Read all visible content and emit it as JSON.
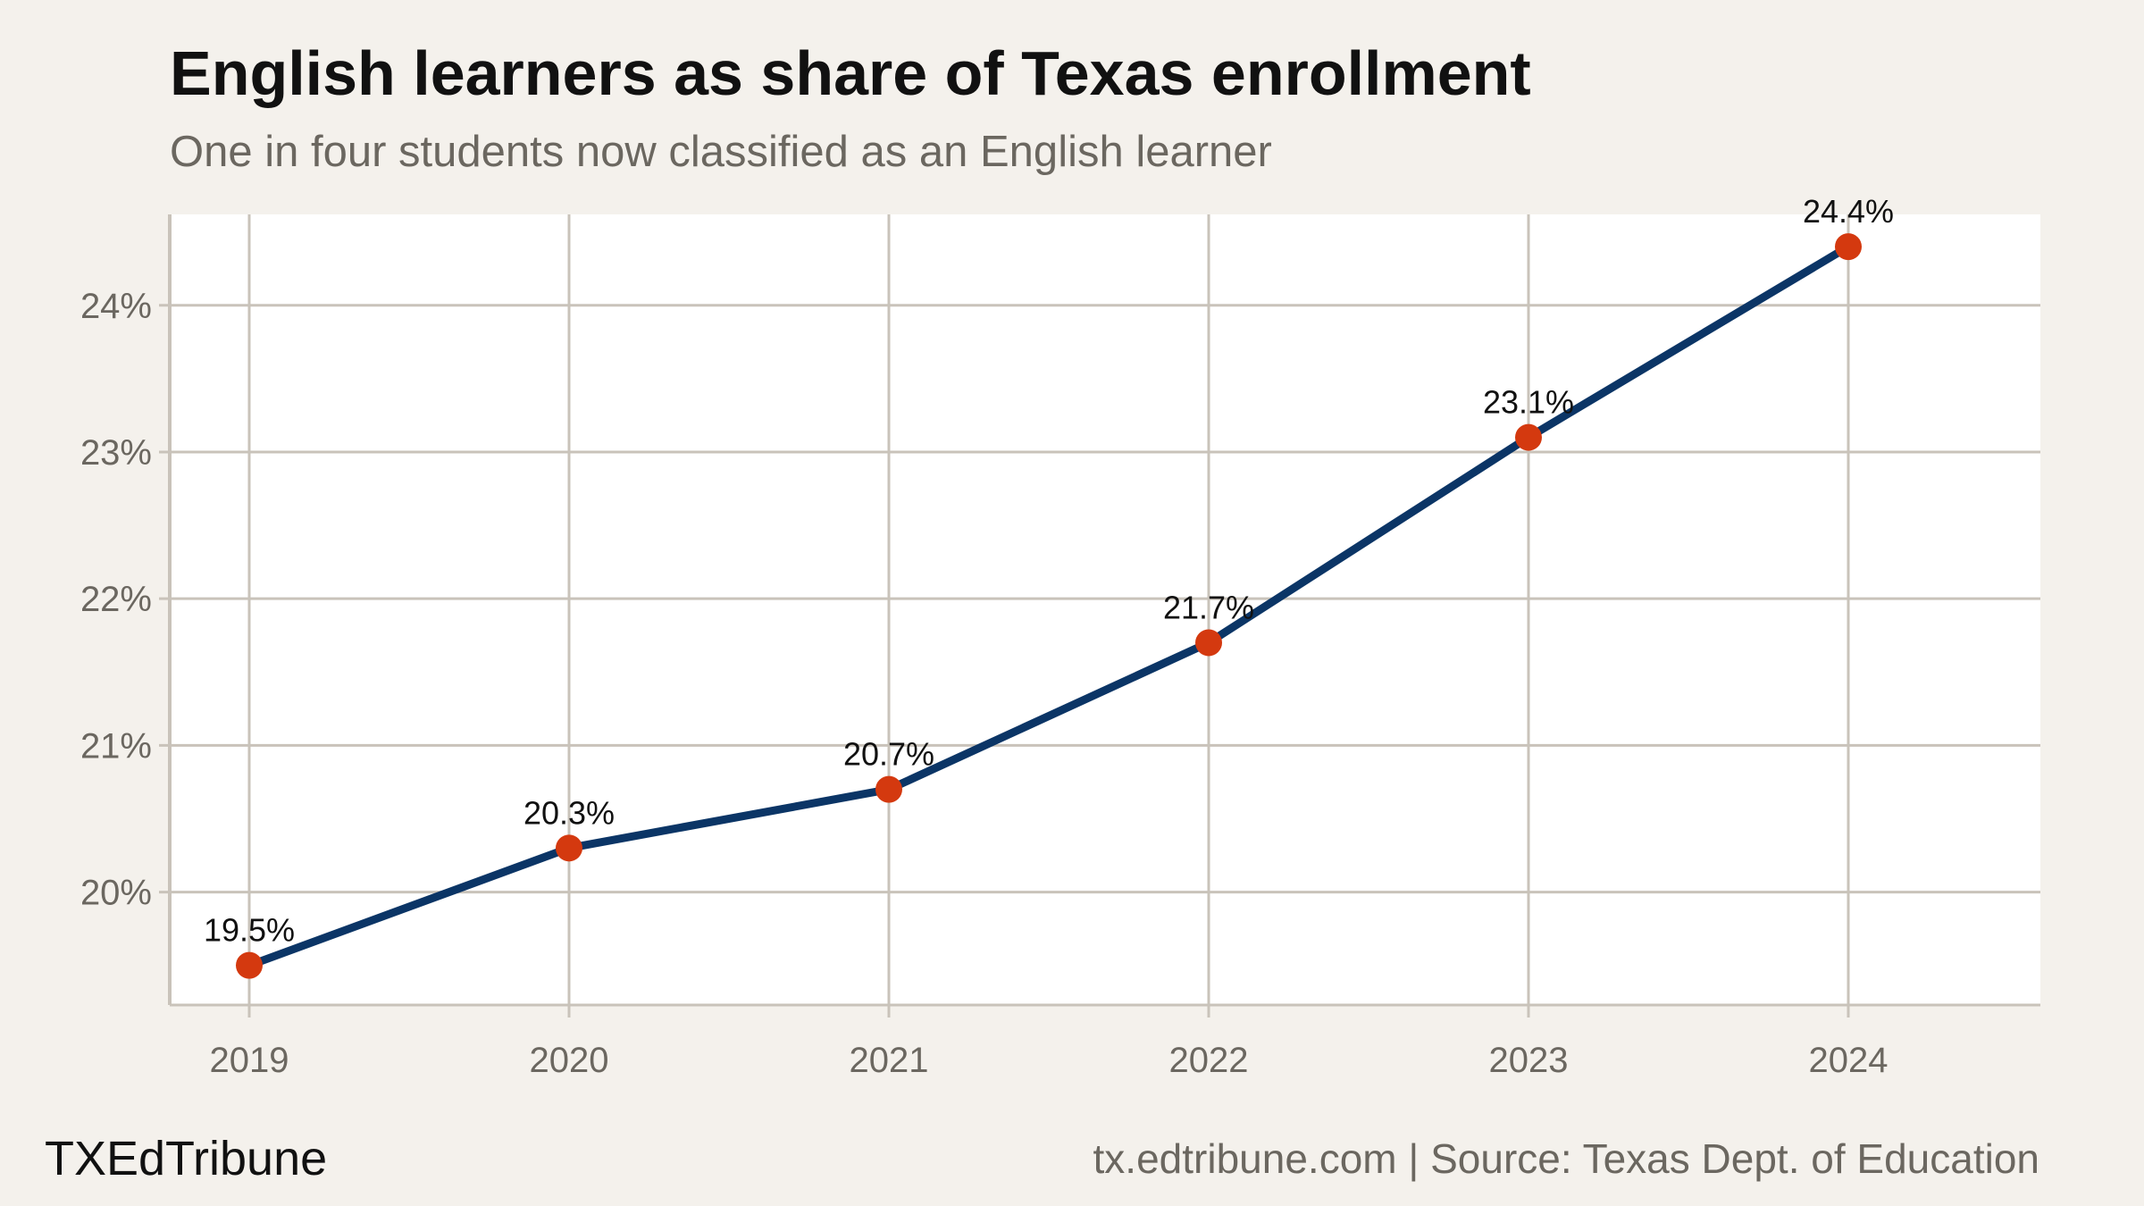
{
  "header": {
    "title": "English learners as share of Texas enrollment",
    "subtitle": "One in four students now classified as an English learner"
  },
  "footer": {
    "brand": "TXEdTribune",
    "source": "tx.edtribune.com | Source: Texas Dept. of Education"
  },
  "colors": {
    "background": "#f4f1ec",
    "plot_background": "#ffffff",
    "grid": "#c9c3ba",
    "line": "#0b3566",
    "marker": "#d4390f",
    "tick_text": "#6b6760"
  },
  "chart_data": {
    "type": "line",
    "title": "English learners as share of Texas enrollment",
    "subtitle": "One in four students now classified as an English learner",
    "x": [
      2019,
      2020,
      2021,
      2022,
      2023,
      2024
    ],
    "x_tick_labels": [
      "2019",
      "2020",
      "2021",
      "2022",
      "2023",
      "2024"
    ],
    "values": [
      19.5,
      20.3,
      20.7,
      21.7,
      23.1,
      24.4
    ],
    "data_labels": [
      "19.5%",
      "20.3%",
      "20.7%",
      "21.7%",
      "23.1%",
      "24.4%"
    ],
    "y_ticks": [
      20,
      21,
      22,
      23,
      24
    ],
    "y_tick_labels": [
      "20%",
      "21%",
      "22%",
      "23%",
      "24%"
    ],
    "ylim": [
      19.23,
      24.62
    ],
    "xlim": [
      2018.75,
      2024.6
    ],
    "grid": true,
    "xlabel": "",
    "ylabel": ""
  }
}
